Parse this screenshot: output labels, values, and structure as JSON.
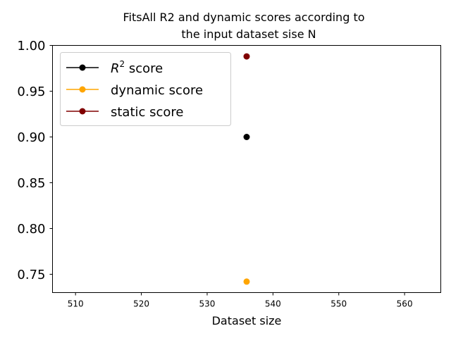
{
  "chart_data": {
    "type": "scatter",
    "title_line1": "FitsAll R2 and dynamic scores according to",
    "title_line2": "the input dataset sise N",
    "xlabel": "Dataset size",
    "ylabel": "",
    "xlim": [
      506.5,
      565.5
    ],
    "ylim": [
      0.73,
      1.0
    ],
    "xticks": [
      510,
      520,
      530,
      540,
      550,
      560
    ],
    "xtick_labels": [
      "510",
      "520",
      "530",
      "540",
      "550",
      "560"
    ],
    "yticks": [
      0.75,
      0.8,
      0.85,
      0.9,
      0.95,
      1.0
    ],
    "ytick_labels": [
      "0.75",
      "0.80",
      "0.85",
      "0.90",
      "0.95",
      "1.00"
    ],
    "grid": false,
    "legend_position": "top-left",
    "series": [
      {
        "name_prefix": "R",
        "name_sup": "2",
        "name_suffix": " score",
        "color": "#000000",
        "x": [
          536
        ],
        "y": [
          0.9
        ]
      },
      {
        "name": "dynamic score",
        "color": "#ffa500",
        "x": [
          536
        ],
        "y": [
          0.742
        ]
      },
      {
        "name": "static score",
        "color": "#800000",
        "x": [
          536
        ],
        "y": [
          0.988
        ]
      }
    ]
  }
}
